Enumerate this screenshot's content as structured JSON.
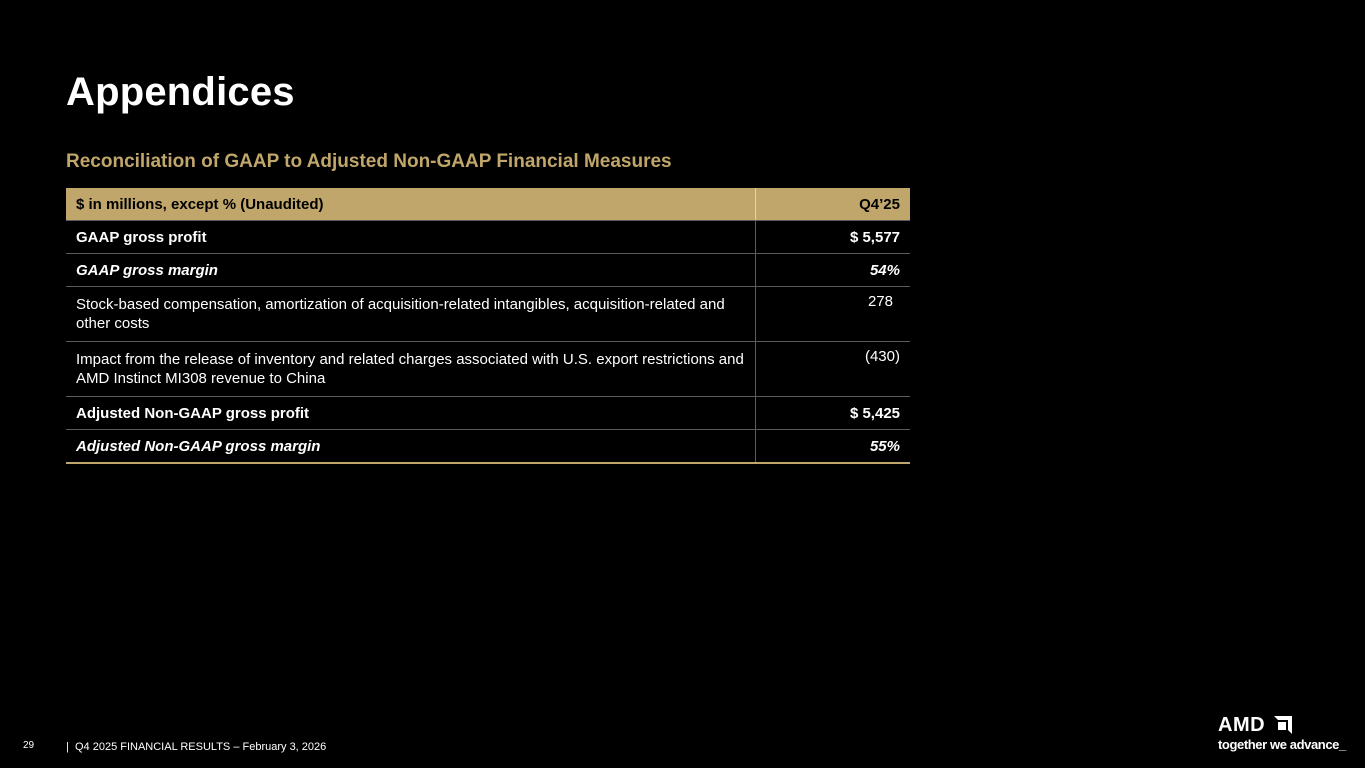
{
  "slide": {
    "title": "Appendices",
    "subtitle": "Reconciliation of GAAP to Adjusted Non-GAAP Financial Measures"
  },
  "table": {
    "header": {
      "label": "$ in millions, except % (Unaudited)",
      "period": "Q4’25"
    },
    "rows": [
      {
        "label": "GAAP gross profit",
        "value": "$ 5,577"
      },
      {
        "label": "GAAP gross margin",
        "value": "54%"
      },
      {
        "label": "Stock-based compensation, amortization of acquisition-related intangibles, acquisition-related and other costs",
        "value": "278"
      },
      {
        "label": "Impact from the release of inventory and related charges associated with U.S. export restrictions and AMD Instinct MI308 revenue to China",
        "value": "(430)"
      },
      {
        "label": "Adjusted Non-GAAP gross profit",
        "value": "$ 5,425"
      },
      {
        "label": "Adjusted Non-GAAP gross margin",
        "value": "55%"
      }
    ]
  },
  "footer": {
    "page_number": "29",
    "separator": "|",
    "text": "Q4 2025 FINANCIAL RESULTS – February 3, 2026"
  },
  "logo": {
    "wordmark": "AMD",
    "mark_icon": "amd-arrow-icon",
    "tagline": "together we advance_"
  },
  "colors": {
    "background": "#000000",
    "accent_gold": "#c0a66a",
    "text": "#ffffff",
    "divider": "#5a5a5a"
  }
}
